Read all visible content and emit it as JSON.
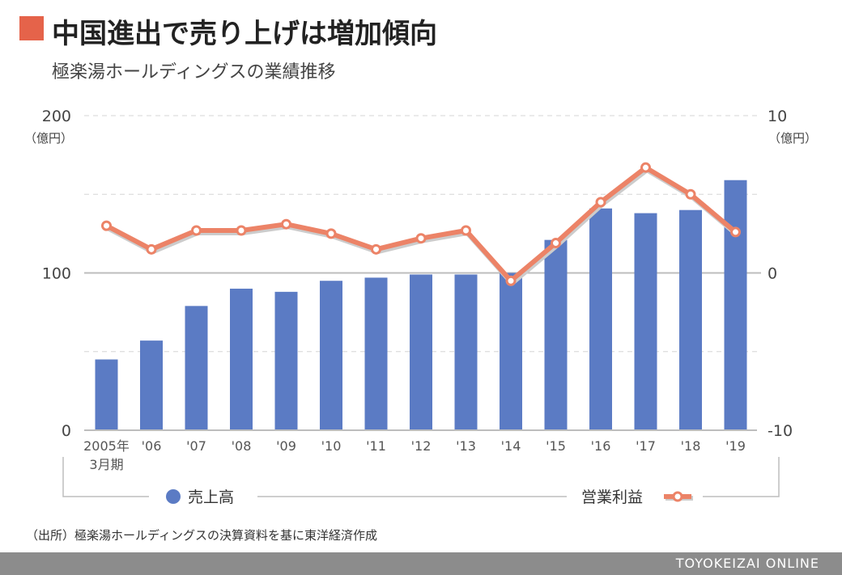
{
  "header": {
    "title": "中国進出で売り上げは増加傾向",
    "subtitle": "極楽湯ホールディングスの業績推移"
  },
  "chart_data": {
    "type": "bar+line",
    "categories": [
      "2005年",
      "'06",
      "'07",
      "'08",
      "'09",
      "'10",
      "'11",
      "'12",
      "'13",
      "'14",
      "'15",
      "'16",
      "'17",
      "'18",
      "'19"
    ],
    "first_category_sub": "3月期",
    "series": [
      {
        "name": "売上高",
        "kind": "bar",
        "axis": "left",
        "color": "#5b7bc4",
        "values": [
          45,
          57,
          79,
          90,
          88,
          95,
          97,
          99,
          99,
          100,
          121,
          141,
          138,
          140,
          159
        ]
      },
      {
        "name": "営業利益",
        "kind": "line",
        "axis": "right",
        "color": "#ec8367",
        "values": [
          3.0,
          1.5,
          2.7,
          2.7,
          3.1,
          2.5,
          1.5,
          2.2,
          2.7,
          -0.5,
          1.9,
          4.5,
          6.7,
          5.0,
          2.6
        ]
      }
    ],
    "left_axis": {
      "ticks": [
        "200",
        "100",
        "0"
      ],
      "unit": "（億円）",
      "ylim": [
        0,
        200
      ]
    },
    "right_axis": {
      "ticks": [
        "10",
        "0",
        "-10"
      ],
      "unit": "（億円）",
      "ylim": [
        -10,
        10
      ]
    },
    "gridlines": {
      "solid_at": 100,
      "dashed_at": [
        150,
        50,
        200
      ]
    },
    "legend": {
      "position": "bottom"
    }
  },
  "footer": {
    "source": "（出所）極楽湯ホールディングスの決算資料を基に東洋経済作成",
    "brand": "TOYOKEIZAI ONLINE"
  }
}
